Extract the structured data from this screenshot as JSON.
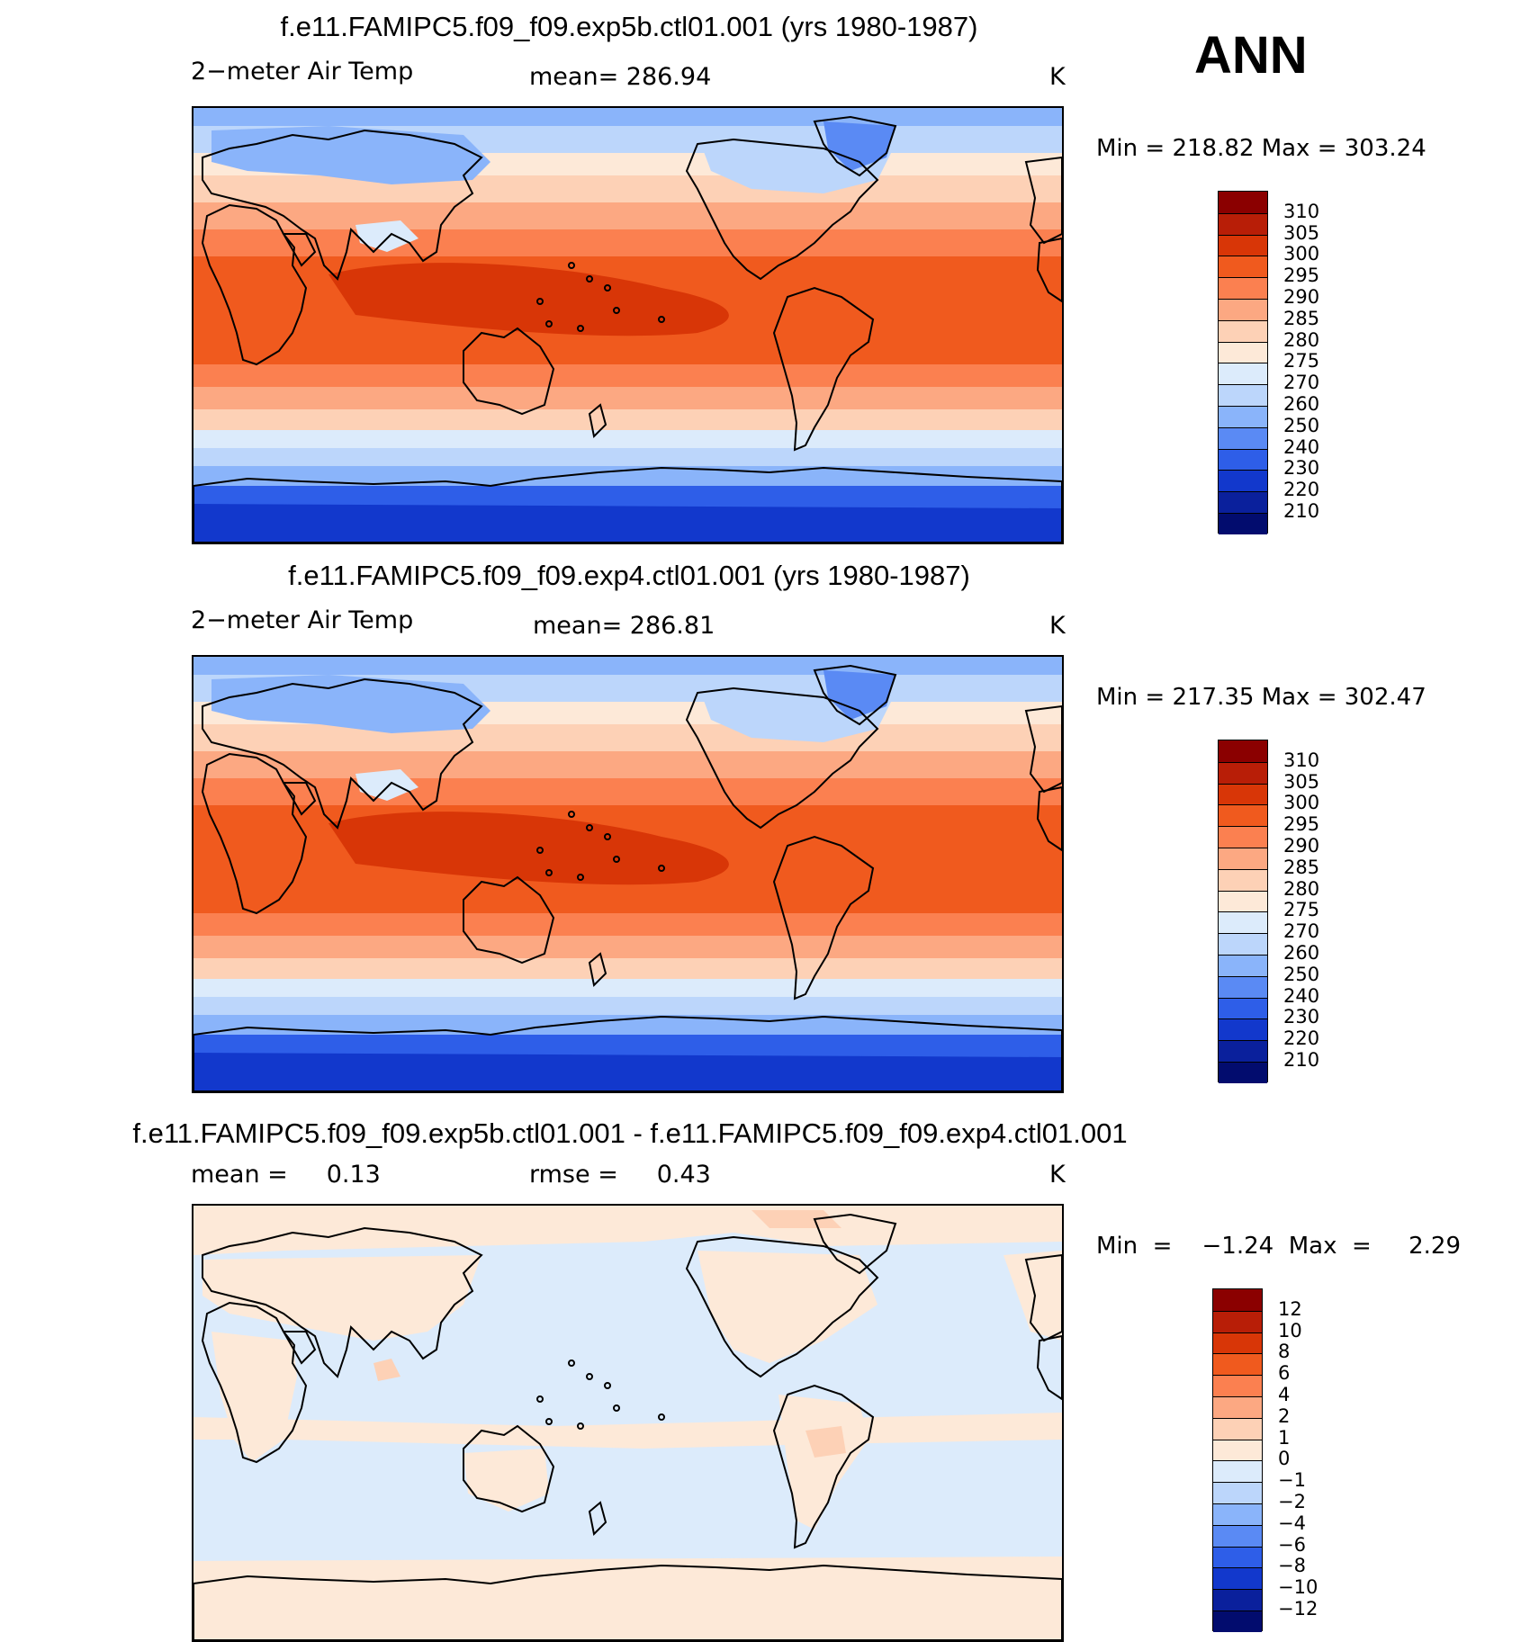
{
  "season": "ANN",
  "panels": [
    {
      "title": "f.e11.FAMIPC5.f09_f09.exp5b.ctl01.001 (yrs 1980-1987)",
      "left_label": "2−meter Air Temp",
      "center_label": "mean=  286.94",
      "units": "K",
      "minmax": "Min  =  218.82  Max  =  303.24",
      "colorbar_labels": [
        "310",
        "305",
        "300",
        "295",
        "290",
        "285",
        "280",
        "275",
        "270",
        "260",
        "250",
        "240",
        "230",
        "220",
        "210"
      ],
      "colorbar_colors": [
        "#8b0000",
        "#b81e07",
        "#d83607",
        "#f05a1e",
        "#fb8050",
        "#fca882",
        "#fdd1b6",
        "#fde9d8",
        "#dcebfb",
        "#bcd6fb",
        "#8ab4fa",
        "#5a8af4",
        "#2e5ee8",
        "#1238cc",
        "#0a209c",
        "#020c6e"
      ],
      "map_style": "full"
    },
    {
      "title": "f.e11.FAMIPC5.f09_f09.exp4.ctl01.001 (yrs 1980-1987)",
      "left_label": "2−meter Air Temp",
      "center_label": "mean=  286.81",
      "units": "K",
      "minmax": "Min  =  217.35  Max  =  302.47",
      "colorbar_labels": [
        "310",
        "305",
        "300",
        "295",
        "290",
        "285",
        "280",
        "275",
        "270",
        "260",
        "250",
        "240",
        "230",
        "220",
        "210"
      ],
      "colorbar_colors": [
        "#8b0000",
        "#b81e07",
        "#d83607",
        "#f05a1e",
        "#fb8050",
        "#fca882",
        "#fdd1b6",
        "#fde9d8",
        "#dcebfb",
        "#bcd6fb",
        "#8ab4fa",
        "#5a8af4",
        "#2e5ee8",
        "#1238cc",
        "#0a209c",
        "#020c6e"
      ],
      "map_style": "full"
    },
    {
      "title": "f.e11.FAMIPC5.f09_f09.exp5b.ctl01.001 - f.e11.FAMIPC5.f09_f09.exp4.ctl01.001",
      "left_label": "mean =     0.13",
      "center_label": "rmse =     0.43",
      "units": "K",
      "minmax": "Min  =    −1.24  Max  =     2.29",
      "colorbar_labels": [
        "12",
        "10",
        "8",
        "6",
        "4",
        "2",
        "1",
        "0",
        "−1",
        "−2",
        "−4",
        "−6",
        "−8",
        "−10",
        "−12"
      ],
      "colorbar_colors": [
        "#8b0000",
        "#b81e07",
        "#d83607",
        "#f05a1e",
        "#fb8050",
        "#fca882",
        "#fdd1b6",
        "#fde9d8",
        "#dcebfb",
        "#bcd6fb",
        "#8ab4fa",
        "#5a8af4",
        "#2e5ee8",
        "#1238cc",
        "#0a209c",
        "#020c6e"
      ],
      "map_style": "diff"
    }
  ]
}
